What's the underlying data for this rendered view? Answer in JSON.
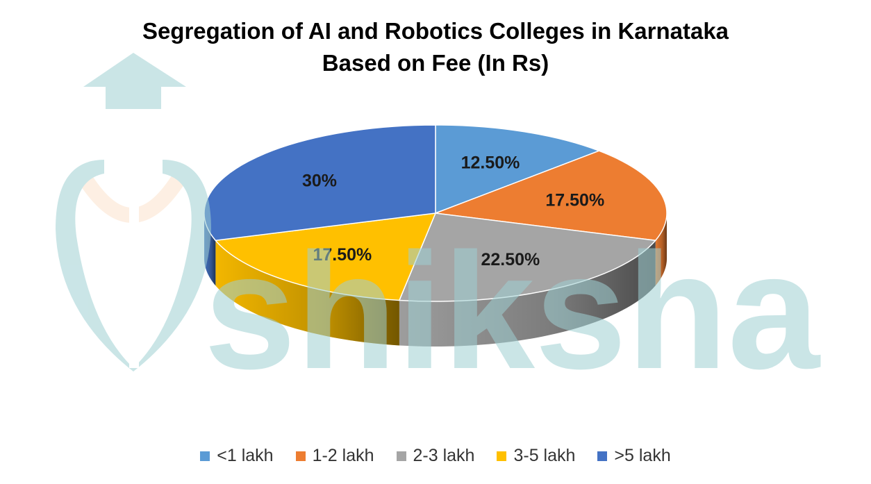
{
  "chart_data": {
    "type": "pie",
    "title_lines": [
      "Segregation of AI and Robotics Colleges in Karnataka",
      "Based on Fee (In Rs)"
    ],
    "categories": [
      "<1 lakh",
      "1-2 lakh",
      "2-3 lakh",
      "3-5 lakh",
      ">5 lakh"
    ],
    "values": [
      12.5,
      17.5,
      22.5,
      17.5,
      30
    ],
    "value_labels": [
      "12.50%",
      "17.50%",
      "22.50%",
      "17.50%",
      "30%"
    ],
    "colors": [
      "#5b9bd5",
      "#ed7d31",
      "#a5a5a5",
      "#ffc000",
      "#4472c4"
    ],
    "legend_position": "bottom",
    "style": "3d-pie"
  },
  "watermark": {
    "text": "shiksha",
    "icon": "graduation-cap-person-logo",
    "color": "#9fd0d3"
  }
}
